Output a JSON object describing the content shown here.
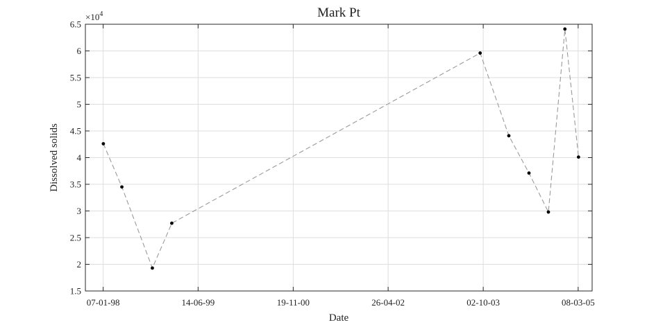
{
  "chart_data": {
    "type": "line",
    "title": "Mark Pt",
    "xlabel": "Date",
    "ylabel": "Dissolved solids",
    "y_exponent_label": "×10^4",
    "y_exponent": {
      "base": "×10",
      "power": "4"
    },
    "ylim": [
      15000,
      65000
    ],
    "xlim": [
      "1997-10-01",
      "2005-05-24"
    ],
    "grid": true,
    "line_style": "dashed",
    "line_color": "#9a9a9a",
    "marker_color": "#000000",
    "x_ticks": [
      {
        "date": "1998-01-07",
        "label": "07-01-98"
      },
      {
        "date": "1999-06-14",
        "label": "14-06-99"
      },
      {
        "date": "2000-11-19",
        "label": "19-11-00"
      },
      {
        "date": "2002-04-26",
        "label": "26-04-02"
      },
      {
        "date": "2003-10-02",
        "label": "02-10-03"
      },
      {
        "date": "2005-03-08",
        "label": "08-03-05"
      }
    ],
    "y_ticks": [
      {
        "value": 15000,
        "label": "1.5"
      },
      {
        "value": 20000,
        "label": "2"
      },
      {
        "value": 25000,
        "label": "2.5"
      },
      {
        "value": 30000,
        "label": "3"
      },
      {
        "value": 35000,
        "label": "3.5"
      },
      {
        "value": 40000,
        "label": "4"
      },
      {
        "value": 45000,
        "label": "4.5"
      },
      {
        "value": 50000,
        "label": "5"
      },
      {
        "value": 55000,
        "label": "5.5"
      },
      {
        "value": 60000,
        "label": "6"
      },
      {
        "value": 65000,
        "label": "6.5"
      }
    ],
    "series": [
      {
        "points": [
          {
            "x": "1998-01-08",
            "y": 42600
          },
          {
            "x": "1998-04-20",
            "y": 34500
          },
          {
            "x": "1998-10-05",
            "y": 19300
          },
          {
            "x": "1999-01-20",
            "y": 27700
          },
          {
            "x": "2003-09-15",
            "y": 59600
          },
          {
            "x": "2004-02-20",
            "y": 44100
          },
          {
            "x": "2004-06-10",
            "y": 37100
          },
          {
            "x": "2004-09-25",
            "y": 29800
          },
          {
            "x": "2004-12-25",
            "y": 64100
          },
          {
            "x": "2005-03-10",
            "y": 40100
          }
        ]
      }
    ]
  }
}
